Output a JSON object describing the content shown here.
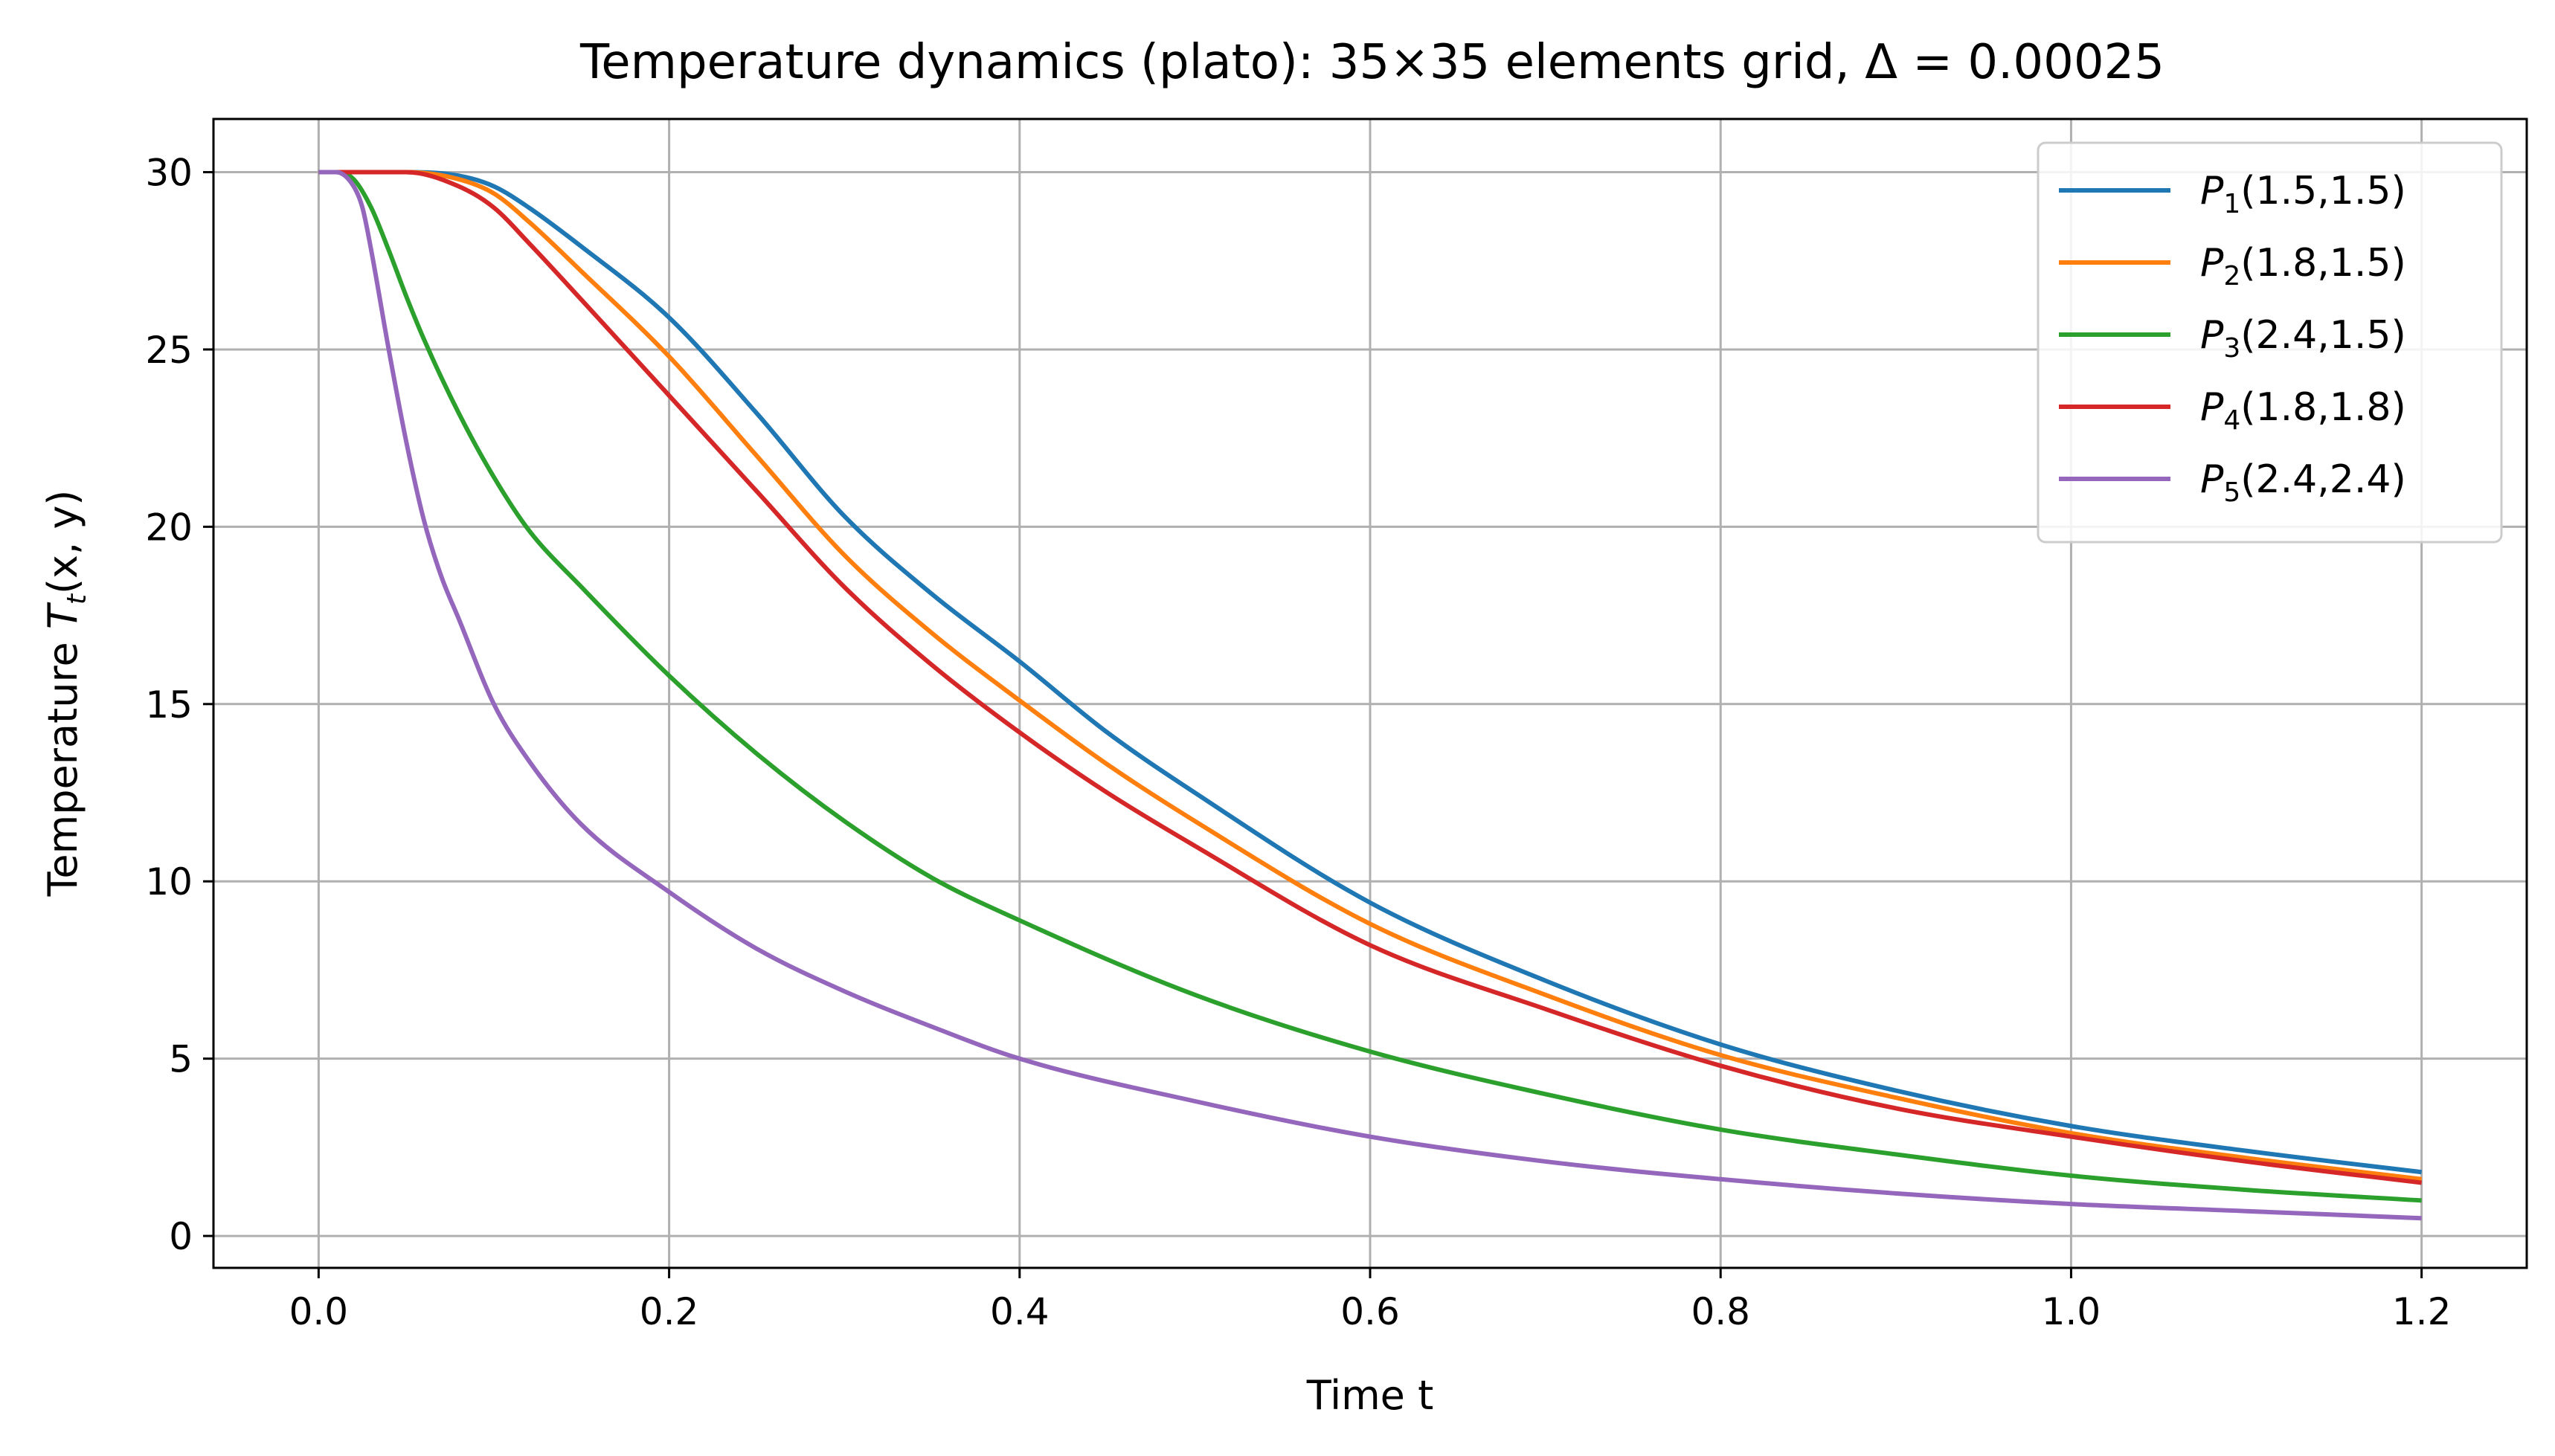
{
  "chart_data": {
    "type": "line",
    "title": "Temperature dynamics (plato): 35×35 elements grid, Δ = 0.00025",
    "xlabel": "Time t",
    "ylabel_prefix": "Temperature ",
    "ylabel_var": "T",
    "ylabel_sub": "t",
    "ylabel_args": "(x, y)",
    "xlim": [
      -0.06,
      1.26
    ],
    "ylim": [
      -0.9,
      31.5
    ],
    "xticks": [
      0.0,
      0.2,
      0.4,
      0.6,
      0.8,
      1.0,
      1.2
    ],
    "xtick_labels": [
      "0.0",
      "0.2",
      "0.4",
      "0.6",
      "0.8",
      "1.0",
      "1.2"
    ],
    "yticks": [
      0,
      5,
      10,
      15,
      20,
      25,
      30
    ],
    "ytick_labels": [
      "0",
      "5",
      "10",
      "15",
      "20",
      "25",
      "30"
    ],
    "grid": true,
    "legend_position": "top-right",
    "series": [
      {
        "name": "P1(1.5,1.5)",
        "label_var": "P",
        "label_sub": "1",
        "label_rest": "(1.5,1.5)",
        "color": "#1f77b4",
        "x": [
          0,
          0.02,
          0.05,
          0.08,
          0.1,
          0.12,
          0.15,
          0.2,
          0.25,
          0.3,
          0.35,
          0.4,
          0.45,
          0.5,
          0.6,
          0.7,
          0.8,
          0.9,
          1.0,
          1.1,
          1.2
        ],
        "y": [
          30,
          30,
          30,
          29.9,
          29.6,
          29.0,
          27.9,
          25.9,
          23.2,
          20.3,
          18.1,
          16.2,
          14.2,
          12.5,
          9.4,
          7.2,
          5.4,
          4.1,
          3.1,
          2.4,
          1.8
        ]
      },
      {
        "name": "P2(1.8,1.5)",
        "label_var": "P",
        "label_sub": "2",
        "label_rest": "(1.8,1.5)",
        "color": "#ff7f0e",
        "x": [
          0,
          0.02,
          0.05,
          0.08,
          0.1,
          0.12,
          0.15,
          0.2,
          0.25,
          0.3,
          0.35,
          0.4,
          0.45,
          0.5,
          0.6,
          0.7,
          0.8,
          0.9,
          1.0,
          1.1,
          1.2
        ],
        "y": [
          30,
          30,
          30,
          29.8,
          29.4,
          28.6,
          27.2,
          24.8,
          22.0,
          19.2,
          17.0,
          15.1,
          13.3,
          11.7,
          8.8,
          6.8,
          5.1,
          3.9,
          2.9,
          2.2,
          1.6
        ]
      },
      {
        "name": "P3(2.4,1.5)",
        "label_var": "P",
        "label_sub": "3",
        "label_rest": "(2.4,1.5)",
        "color": "#2ca02c",
        "x": [
          0,
          0.01,
          0.02,
          0.03,
          0.04,
          0.05,
          0.06,
          0.08,
          0.1,
          0.12,
          0.15,
          0.2,
          0.25,
          0.3,
          0.35,
          0.4,
          0.5,
          0.6,
          0.7,
          0.8,
          0.9,
          1.0,
          1.1,
          1.2
        ],
        "y": [
          30,
          30,
          29.8,
          29.0,
          27.8,
          26.5,
          25.3,
          23.2,
          21.4,
          19.9,
          18.3,
          15.8,
          13.6,
          11.7,
          10.1,
          8.9,
          6.8,
          5.2,
          4.0,
          3.0,
          2.3,
          1.7,
          1.3,
          1.0
        ]
      },
      {
        "name": "P4(1.8,1.8)",
        "label_var": "P",
        "label_sub": "4",
        "label_rest": "(1.8,1.8)",
        "color": "#d62728",
        "x": [
          0,
          0.02,
          0.05,
          0.08,
          0.1,
          0.12,
          0.15,
          0.2,
          0.25,
          0.3,
          0.35,
          0.4,
          0.45,
          0.5,
          0.6,
          0.7,
          0.8,
          0.9,
          1.0,
          1.1,
          1.2
        ],
        "y": [
          30,
          30,
          30,
          29.6,
          29.0,
          28.0,
          26.4,
          23.7,
          21.0,
          18.3,
          16.1,
          14.2,
          12.5,
          11.0,
          8.2,
          6.4,
          4.8,
          3.6,
          2.8,
          2.1,
          1.5
        ]
      },
      {
        "name": "P5(2.4,2.4)",
        "label_var": "P",
        "label_sub": "5",
        "label_rest": "(2.4,2.4)",
        "color": "#9467bd",
        "x": [
          0,
          0.01,
          0.02,
          0.025,
          0.03,
          0.04,
          0.05,
          0.06,
          0.07,
          0.08,
          0.1,
          0.12,
          0.15,
          0.2,
          0.25,
          0.3,
          0.35,
          0.4,
          0.5,
          0.6,
          0.7,
          0.8,
          0.9,
          1.0,
          1.1,
          1.2
        ],
        "y": [
          30,
          30,
          29.6,
          29.0,
          27.8,
          25.0,
          22.4,
          20.2,
          18.6,
          17.4,
          15.0,
          13.4,
          11.6,
          9.7,
          8.1,
          6.9,
          5.9,
          5.0,
          3.8,
          2.8,
          2.1,
          1.6,
          1.2,
          0.9,
          0.7,
          0.5
        ]
      }
    ]
  }
}
